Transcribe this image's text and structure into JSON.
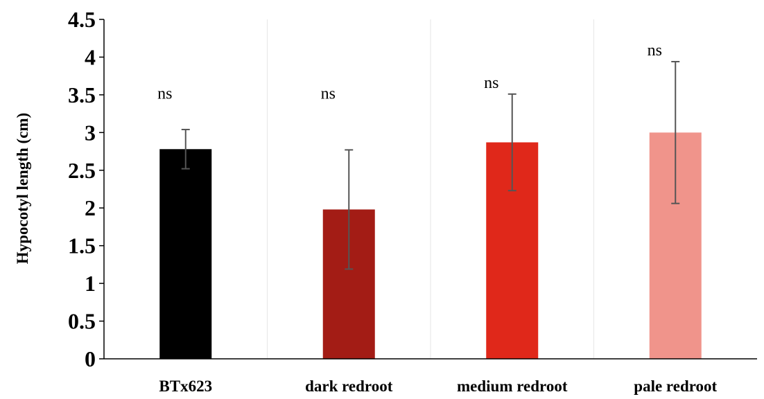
{
  "chart_data": {
    "type": "bar",
    "categories": [
      "BTx623",
      "dark redroot",
      "medium redroot",
      "pale redroot"
    ],
    "values": [
      2.78,
      1.98,
      2.87,
      3.0
    ],
    "errors": [
      0.26,
      0.79,
      0.64,
      0.94
    ],
    "annotations": [
      "ns",
      "ns",
      "ns",
      "ns"
    ],
    "colors": [
      "#000000",
      "#a31c15",
      "#e0281a",
      "#f0948b"
    ],
    "ylabel": "Hypocotyl length (cm)",
    "xlabel": "",
    "ylim": [
      0,
      4.5
    ],
    "yticks": [
      "0",
      "0.5",
      "1",
      "1.5",
      "2",
      "2.5",
      "3",
      "3.5",
      "4",
      "4.5"
    ],
    "grid": "vertical"
  }
}
